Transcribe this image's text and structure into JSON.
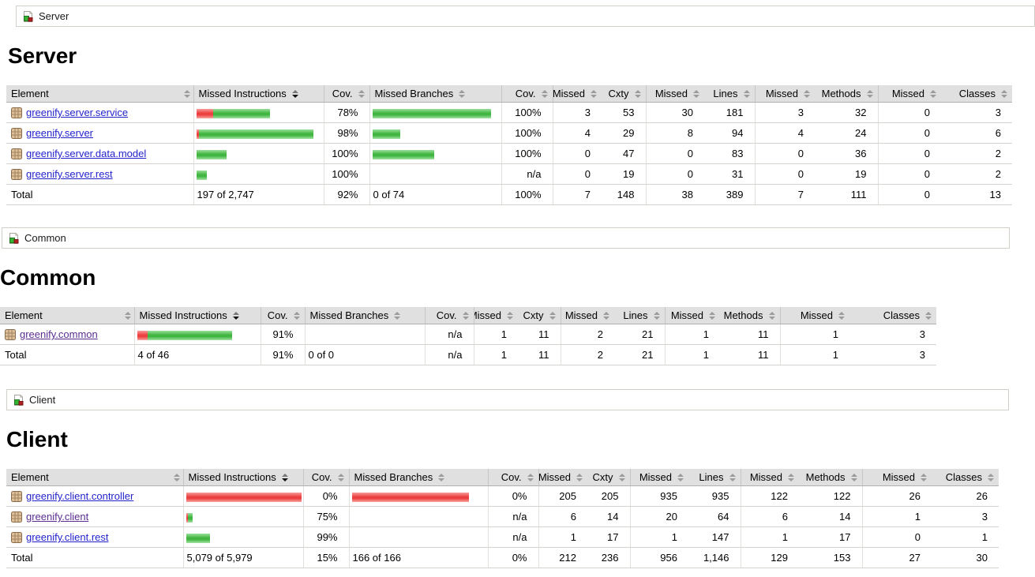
{
  "columns": [
    "Element",
    "Missed Instructions",
    "Cov.",
    "Missed Branches",
    "Cov.",
    "Missed",
    "Cxty",
    "Missed",
    "Lines",
    "Missed",
    "Methods",
    "Missed",
    "Classes"
  ],
  "colors": {
    "covered_green": "#41b541",
    "missed_red": "#ec4040",
    "header_bg": "#e0e0e0",
    "link_blue": "#2323cc",
    "link_visited_purple": "#5b2d90"
  },
  "icons": {
    "breadcrumb": "report-icon",
    "package": "package-icon",
    "header_sort": "sort-arrows-icon"
  },
  "sort": {
    "sorted_column": "Missed Instructions",
    "direction": "descending"
  },
  "sections": [
    {
      "breadcrumb": "Server",
      "heading": "Server",
      "rows": [
        {
          "name": "greenify.server.service",
          "ired": 21,
          "igreen": 72,
          "icov": "78%",
          "bred": 0,
          "bgreen": 150,
          "bcov": "100%",
          "mcxty": "3",
          "cxty": "53",
          "mlines": "30",
          "lines": "181",
          "mmeth": "3",
          "meth": "32",
          "mcls": "0",
          "cls": "3"
        },
        {
          "name": "greenify.server",
          "ired": 3,
          "igreen": 145,
          "icov": "98%",
          "bred": 0,
          "bgreen": 35,
          "bcov": "100%",
          "mcxty": "4",
          "cxty": "29",
          "mlines": "8",
          "lines": "94",
          "mmeth": "4",
          "meth": "24",
          "mcls": "0",
          "cls": "6"
        },
        {
          "name": "greenify.server.data.model",
          "ired": 0,
          "igreen": 38,
          "icov": "100%",
          "bred": 0,
          "bgreen": 78,
          "bcov": "100%",
          "mcxty": "0",
          "cxty": "47",
          "mlines": "0",
          "lines": "83",
          "mmeth": "0",
          "meth": "36",
          "mcls": "0",
          "cls": "2"
        },
        {
          "name": "greenify.server.rest",
          "ired": 0,
          "igreen": 13,
          "icov": "100%",
          "bred": 0,
          "bgreen": 0,
          "bcov": "n/a",
          "mcxty": "0",
          "cxty": "19",
          "mlines": "0",
          "lines": "31",
          "mmeth": "0",
          "meth": "19",
          "mcls": "0",
          "cls": "2"
        }
      ],
      "total": {
        "label": "Total",
        "itext": "197 of 2,747",
        "icov": "92%",
        "btext": "0 of 74",
        "bcov": "100%",
        "mcxty": "7",
        "cxty": "148",
        "mlines": "38",
        "lines": "389",
        "mmeth": "7",
        "meth": "111",
        "mcls": "0",
        "cls": "13"
      }
    },
    {
      "breadcrumb": "Common",
      "heading": "Common",
      "rows": [
        {
          "name": "greenify.common",
          "ired": 13,
          "igreen": 107,
          "icov": "91%",
          "bred": 0,
          "bgreen": 0,
          "bcov": "n/a",
          "mcxty": "1",
          "cxty": "11",
          "mlines": "2",
          "lines": "21",
          "mmeth": "1",
          "meth": "11",
          "mcls": "1",
          "cls": "3"
        }
      ],
      "total": {
        "label": "Total",
        "itext": "4 of 46",
        "icov": "91%",
        "btext": "0 of 0",
        "bcov": "n/a",
        "mcxty": "1",
        "cxty": "11",
        "mlines": "2",
        "lines": "21",
        "mmeth": "1",
        "meth": "11",
        "mcls": "1",
        "cls": "3"
      }
    },
    {
      "breadcrumb": "Client",
      "heading": "Client",
      "rows": [
        {
          "name": "greenify.client.controller",
          "ired": 146,
          "igreen": 0,
          "icov": "0%",
          "bred": 148,
          "bgreen": 0,
          "bcov": "0%",
          "mcxty": "205",
          "cxty": "205",
          "mlines": "935",
          "lines": "935",
          "mmeth": "122",
          "meth": "122",
          "mcls": "26",
          "cls": "26"
        },
        {
          "name": "greenify.client",
          "ired": 2,
          "igreen": 6,
          "icov": "75%",
          "bred": 0,
          "bgreen": 0,
          "bcov": "n/a",
          "mcxty": "6",
          "cxty": "14",
          "mlines": "20",
          "lines": "64",
          "mmeth": "6",
          "meth": "14",
          "mcls": "1",
          "cls": "3"
        },
        {
          "name": "greenify.client.rest",
          "ired": 0,
          "igreen": 30,
          "icov": "99%",
          "bred": 0,
          "bgreen": 0,
          "bcov": "n/a",
          "mcxty": "1",
          "cxty": "17",
          "mlines": "1",
          "lines": "147",
          "mmeth": "1",
          "meth": "17",
          "mcls": "0",
          "cls": "1"
        }
      ],
      "total": {
        "label": "Total",
        "itext": "5,079 of 5,979",
        "icov": "15%",
        "btext": "166 of 166",
        "bcov": "0%",
        "mcxty": "212",
        "cxty": "236",
        "mlines": "956",
        "lines": "1,146",
        "mmeth": "129",
        "meth": "153",
        "mcls": "27",
        "cls": "30"
      }
    }
  ]
}
